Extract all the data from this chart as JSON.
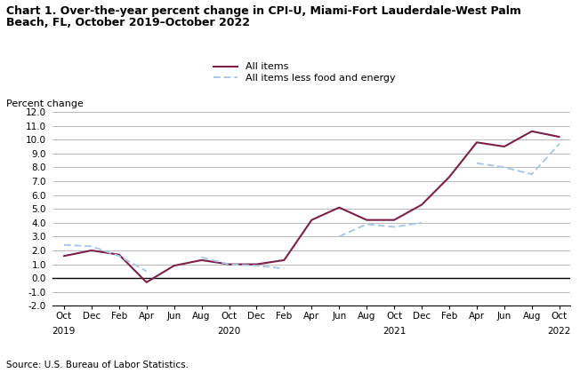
{
  "title_line1": "Chart 1. Over-the-year percent change in CPI-U, Miami-Fort Lauderdale-West Palm",
  "title_line2": "Beach, FL, October 2019–October 2022",
  "ylabel": "Percent change",
  "source": "Source: U.S. Bureau of Labor Statistics.",
  "all_items": [
    1.6,
    2.0,
    1.7,
    -0.3,
    0.9,
    1.3,
    1.0,
    1.0,
    1.3,
    4.2,
    5.1,
    4.2,
    4.2,
    5.3,
    7.3,
    9.8,
    9.5,
    10.6,
    10.2
  ],
  "all_less": [
    2.4,
    2.3,
    1.6,
    0.5,
    null,
    1.5,
    1.0,
    0.9,
    0.7,
    null,
    3.0,
    3.9,
    3.7,
    4.0,
    null,
    8.3,
    8.0,
    7.5,
    9.7
  ],
  "ylim": [
    -2.0,
    12.0
  ],
  "yticks": [
    -2.0,
    -1.0,
    0.0,
    1.0,
    2.0,
    3.0,
    4.0,
    5.0,
    6.0,
    7.0,
    8.0,
    9.0,
    10.0,
    11.0,
    12.0
  ],
  "color_all_items": "#7B2147",
  "color_less": "#A8C8E8",
  "legend_all_items": "All items",
  "legend_less": "All items less food and energy",
  "tick_labels": [
    "Oct",
    "Dec",
    "Feb",
    "Apr",
    "Jun",
    "Aug",
    "Oct",
    "Dec",
    "Feb",
    "Apr",
    "Jun",
    "Aug",
    "Oct",
    "Dec",
    "Feb",
    "Apr",
    "Jun",
    "Aug",
    "Oct"
  ],
  "year_row": [
    "2019",
    "",
    "",
    "",
    "",
    "",
    "2020",
    "",
    "",
    "",
    "",
    "",
    "2021",
    "",
    "",
    "",
    "",
    "",
    "2022"
  ]
}
